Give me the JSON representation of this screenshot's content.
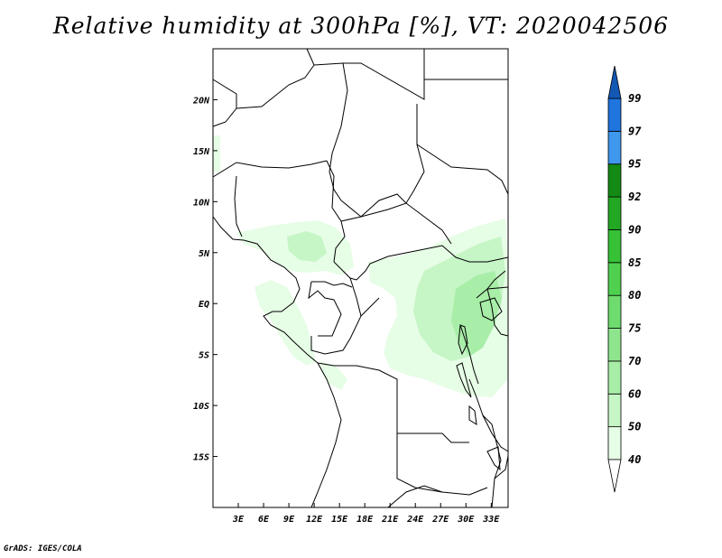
{
  "title": "Relative humidity at 300hPa [%], VT: 2020042506",
  "credit": "GrADS: IGES/COLA",
  "map": {
    "lon_range": [
      0,
      35
    ],
    "lat_range": [
      -20,
      25
    ],
    "lon_ticks": [
      {
        "value": 3,
        "label": "3E"
      },
      {
        "value": 6,
        "label": "6E"
      },
      {
        "value": 9,
        "label": "9E"
      },
      {
        "value": 12,
        "label": "12E"
      },
      {
        "value": 15,
        "label": "15E"
      },
      {
        "value": 18,
        "label": "18E"
      },
      {
        "value": 21,
        "label": "21E"
      },
      {
        "value": 24,
        "label": "24E"
      },
      {
        "value": 27,
        "label": "27E"
      },
      {
        "value": 30,
        "label": "30E"
      },
      {
        "value": 33,
        "label": "33E"
      }
    ],
    "lat_ticks": [
      {
        "value": 20,
        "label": "20N"
      },
      {
        "value": 15,
        "label": "15N"
      },
      {
        "value": 10,
        "label": "10N"
      },
      {
        "value": 5,
        "label": "5N"
      },
      {
        "value": 0,
        "label": "EQ"
      },
      {
        "value": -5,
        "label": "5S"
      },
      {
        "value": -10,
        "label": "10S"
      },
      {
        "value": -15,
        "label": "15S"
      }
    ]
  },
  "colorbar": {
    "levels": [
      "40",
      "50",
      "60",
      "70",
      "75",
      "80",
      "85",
      "90",
      "92",
      "95",
      "97",
      "99"
    ],
    "colors": [
      "#ffffff",
      "#e6fde6",
      "#c6f5c6",
      "#a8eea8",
      "#8ee58e",
      "#6edc6e",
      "#4fd14f",
      "#36c136",
      "#22a822",
      "#138a13",
      "#3f97ee",
      "#1f74de",
      "#1458b5"
    ]
  },
  "humidity_colors": {
    "light": "#e6fde6",
    "medium": "#c6f5c6",
    "strong": "#a8eea8"
  }
}
